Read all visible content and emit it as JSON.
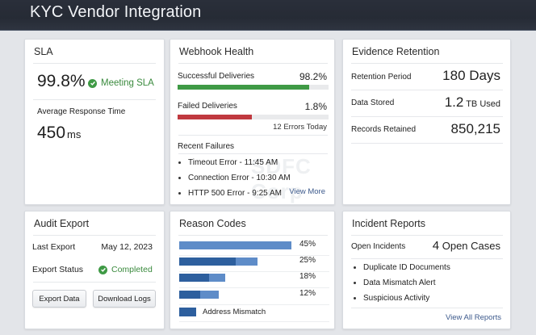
{
  "header": {
    "title": "KYC Vendor Integration"
  },
  "sla": {
    "title": "SLA",
    "value": "99.8%",
    "status": "Meeting SLA",
    "status_icon": "check-circle-icon",
    "response_label": "Average Response Time",
    "response_value": "450",
    "response_unit": "ms"
  },
  "webhook": {
    "title": "Webhook Health",
    "success_label": "Successful Deliveries",
    "success_value": "98.2%",
    "success_bar_pct": 87,
    "success_color": "#3f9a45",
    "failed_label": "Failed Deliveries",
    "failed_value": "1.8%",
    "failed_bar_pct": 49,
    "failed_color": "#c0393f",
    "errors_today": "12 Errors Today",
    "recent_title": "Recent Failures",
    "recent": [
      "Timeout Error - 11:45 AM",
      "Connection Error - 10:30 AM",
      "HTTP 500 Error - 9:25 AM"
    ],
    "view_more": "View More",
    "watermark": "SDFC Corp"
  },
  "evidence": {
    "title": "Evidence Retention",
    "rows": [
      {
        "label": "Retention Period",
        "value": "180 Days",
        "unit": ""
      },
      {
        "label": "Data Stored",
        "value": "1.2",
        "unit": " TB Used"
      },
      {
        "label": "Records Retained",
        "value": "850,215",
        "unit": ""
      }
    ]
  },
  "audit": {
    "title": "Audit Export",
    "last_export_label": "Last Export",
    "last_export_value": "May 12, 2023",
    "status_label": "Export Status",
    "status_value": "Completed",
    "export_button": "Export Data",
    "download_button": "Download Logs"
  },
  "reasons": {
    "title": "Reason Codes",
    "bars": [
      {
        "pct": "45%",
        "dark_w": 0,
        "light_w": 139
      },
      {
        "pct": "25%",
        "dark_w": 70,
        "light_w": 27
      },
      {
        "pct": "18%",
        "dark_w": 37,
        "light_w": 20
      },
      {
        "pct": "12%",
        "dark_w": 26,
        "light_w": 23
      }
    ],
    "legend": "Address Mismatch",
    "legend_color": "#2d5f9e"
  },
  "incidents": {
    "title": "Incident Reports",
    "open_label": "Open Incidents",
    "open_count": "4",
    "open_suffix": " Open Cases",
    "items": [
      "Duplicate ID Documents",
      "Data Mismatch Alert",
      "Suspicious Activity"
    ],
    "view_all": "View All Reports"
  }
}
